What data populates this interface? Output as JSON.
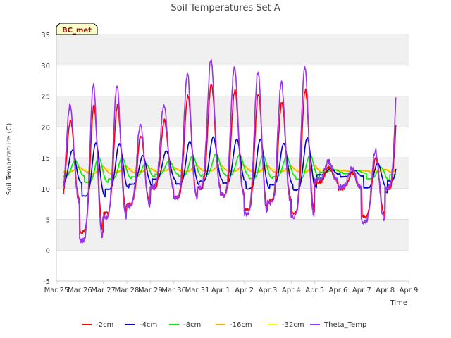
{
  "chart_data": {
    "type": "line",
    "title": "Soil Temperatures Set A",
    "xlabel": "Time",
    "ylabel": "Soil Temperature (C)",
    "badge": "BC_met",
    "ylim": [
      -5,
      35
    ],
    "yticks": [
      "-5",
      "0",
      "5",
      "10",
      "15",
      "20",
      "25",
      "30",
      "35"
    ],
    "xlim": [
      0,
      15
    ],
    "xticks": [
      "Mar 25",
      "Mar 26",
      "Mar 27",
      "Mar 28",
      "Mar 29",
      "Mar 30",
      "Mar 31",
      "Apr 1",
      "Apr 2",
      "Apr 3",
      "Apr 4",
      "Apr 5",
      "Apr 6",
      "Apr 7",
      "Apr 8",
      "Apr 9"
    ],
    "grid": true,
    "legend_position": "bottom",
    "day_min": [
      8,
      3,
      6,
      7.5,
      10,
      8.5,
      10,
      9,
      6.5,
      8,
      6,
      11,
      10,
      5.5,
      10
    ],
    "day_max": [
      21,
      23.5,
      23.5,
      18.5,
      21,
      25,
      27,
      26,
      25.5,
      24,
      26,
      13.5,
      12.5,
      15,
      27
    ],
    "series": [
      {
        "name": "-2cm",
        "color": "#ff0000",
        "amp": 1.0,
        "lag": 0.0,
        "damp": 1.0,
        "mean": 0,
        "noise": 0.6,
        "x_start": 0.3,
        "x_end": 14.45
      },
      {
        "name": "-4cm",
        "color": "#0000cc",
        "amp": 0.42,
        "lag": 0.08,
        "damp": 0.8,
        "mean": 0,
        "noise": 0.15,
        "x_start": 0.3,
        "x_end": 14.45
      },
      {
        "name": "-8cm",
        "color": "#00ee00",
        "amp": 0.2,
        "lag": 0.2,
        "damp": 0.5,
        "mean": 0,
        "noise": 0.05,
        "x_start": 0.3,
        "x_end": 14.45
      },
      {
        "name": "-16cm",
        "color": "#ffa500",
        "amp": 0.06,
        "lag": 0.35,
        "damp": 0.25,
        "mean": 0,
        "noise": 0.03,
        "x_start": 0.3,
        "x_end": 14.45
      },
      {
        "name": "-32cm",
        "color": "#ffff00",
        "amp": 0.02,
        "lag": 0.5,
        "damp": 0.1,
        "mean": 0,
        "noise": 0.02,
        "x_start": 0.3,
        "x_end": 14.45
      },
      {
        "name": "Theta_Temp",
        "color": "#9933ee",
        "amp": 1.12,
        "lag": -0.02,
        "damp": 1.0,
        "mean": 0,
        "noise": 0.9,
        "x_start": 0.3,
        "x_end": 14.45
      }
    ]
  }
}
